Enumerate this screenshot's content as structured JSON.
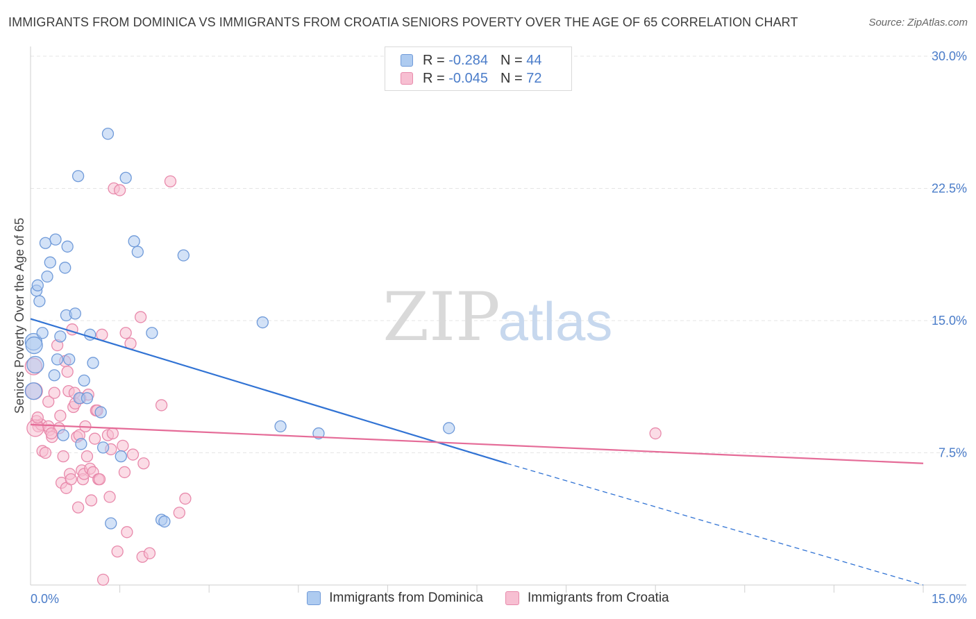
{
  "header": {
    "title": "IMMIGRANTS FROM DOMINICA VS IMMIGRANTS FROM CROATIA SENIORS POVERTY OVER THE AGE OF 65 CORRELATION CHART",
    "source": "Source: ZipAtlas.com"
  },
  "watermark": {
    "zip": "ZIP",
    "atlas": "atlas"
  },
  "legend_top": {
    "r_label": "R =",
    "n_label": "N =",
    "series": [
      {
        "r": "-0.284",
        "n": "44"
      },
      {
        "r": "-0.045",
        "n": "72"
      }
    ]
  },
  "colors": {
    "dominica_fill": "#aecbf0",
    "dominica_stroke": "#6f9ad9",
    "dominica_line": "#3173d4",
    "croatia_fill": "#f7bfd2",
    "croatia_stroke": "#e889ab",
    "croatia_line": "#e56c98",
    "grid": "#e4e4e4",
    "axis_tick_label": "#4a7cc9"
  },
  "chart_data": {
    "type": "scatter",
    "title": "IMMIGRANTS FROM DOMINICA VS IMMIGRANTS FROM CROATIA SENIORS POVERTY OVER THE AGE OF 65 CORRELATION CHART",
    "xlabel": "",
    "ylabel": "Seniors Poverty Over the Age of 65",
    "xlim": [
      0,
      15
    ],
    "ylim": [
      0,
      30
    ],
    "x_ticks": [
      0,
      15
    ],
    "x_tick_labels": [
      "0.0%",
      "15.0%"
    ],
    "y_ticks": [
      7.5,
      15,
      22.5,
      30
    ],
    "y_tick_labels": [
      "7.5%",
      "15.0%",
      "22.5%",
      "30.0%"
    ],
    "grid": true,
    "legend_position": "top-center",
    "series": [
      {
        "name": "Immigrants from Dominica",
        "r": -0.284,
        "n": 44,
        "trend": {
          "x": [
            0,
            8.0
          ],
          "y": [
            15.1,
            6.9
          ]
        },
        "trend_extension": {
          "x": [
            8.0,
            15.0
          ],
          "y": [
            6.9,
            0.0
          ]
        },
        "points": [
          [
            0.05,
            13.8
          ],
          [
            0.06,
            13.6
          ],
          [
            0.1,
            16.7
          ],
          [
            0.12,
            17.0
          ],
          [
            0.15,
            16.1
          ],
          [
            0.2,
            14.3
          ],
          [
            0.25,
            19.4
          ],
          [
            0.28,
            17.5
          ],
          [
            0.33,
            18.3
          ],
          [
            0.4,
            11.9
          ],
          [
            0.42,
            19.6
          ],
          [
            0.45,
            12.8
          ],
          [
            0.5,
            14.1
          ],
          [
            0.55,
            8.5
          ],
          [
            0.58,
            18.0
          ],
          [
            0.6,
            15.3
          ],
          [
            0.62,
            19.2
          ],
          [
            0.65,
            12.8
          ],
          [
            0.75,
            15.4
          ],
          [
            0.8,
            23.2
          ],
          [
            0.82,
            10.6
          ],
          [
            0.85,
            8.0
          ],
          [
            0.9,
            11.6
          ],
          [
            0.95,
            10.6
          ],
          [
            1.0,
            14.2
          ],
          [
            1.05,
            12.6
          ],
          [
            1.18,
            9.8
          ],
          [
            1.22,
            7.8
          ],
          [
            1.35,
            3.5
          ],
          [
            1.3,
            25.6
          ],
          [
            1.52,
            7.3
          ],
          [
            1.6,
            23.1
          ],
          [
            1.74,
            19.5
          ],
          [
            1.8,
            18.9
          ],
          [
            2.04,
            14.3
          ],
          [
            2.2,
            3.7
          ],
          [
            2.25,
            3.6
          ],
          [
            2.57,
            18.7
          ],
          [
            3.9,
            14.9
          ],
          [
            4.2,
            9.0
          ],
          [
            4.84,
            8.6
          ],
          [
            7.03,
            8.9
          ],
          [
            0.05,
            11.0
          ],
          [
            0.08,
            12.5
          ]
        ]
      },
      {
        "name": "Immigrants from Croatia",
        "r": -0.045,
        "n": 72,
        "trend": {
          "x": [
            0,
            15.0
          ],
          "y": [
            9.1,
            6.9
          ]
        },
        "points": [
          [
            0.05,
            12.4
          ],
          [
            0.06,
            11.0
          ],
          [
            0.1,
            9.3
          ],
          [
            0.13,
            9.0
          ],
          [
            0.18,
            9.1
          ],
          [
            0.2,
            7.6
          ],
          [
            0.25,
            7.5
          ],
          [
            0.3,
            10.4
          ],
          [
            0.32,
            8.8
          ],
          [
            0.36,
            8.4
          ],
          [
            0.4,
            10.9
          ],
          [
            0.45,
            13.6
          ],
          [
            0.48,
            8.9
          ],
          [
            0.5,
            9.6
          ],
          [
            0.52,
            5.8
          ],
          [
            0.55,
            7.3
          ],
          [
            0.58,
            12.7
          ],
          [
            0.6,
            5.5
          ],
          [
            0.62,
            12.1
          ],
          [
            0.64,
            11.0
          ],
          [
            0.66,
            6.3
          ],
          [
            0.68,
            6.0
          ],
          [
            0.7,
            14.5
          ],
          [
            0.72,
            10.1
          ],
          [
            0.74,
            10.9
          ],
          [
            0.75,
            10.3
          ],
          [
            0.78,
            8.4
          ],
          [
            0.8,
            4.4
          ],
          [
            0.82,
            8.5
          ],
          [
            0.84,
            10.6
          ],
          [
            0.86,
            6.5
          ],
          [
            0.88,
            6.0
          ],
          [
            0.9,
            6.3
          ],
          [
            0.92,
            9.0
          ],
          [
            0.95,
            7.3
          ],
          [
            0.97,
            10.8
          ],
          [
            1.0,
            6.6
          ],
          [
            1.02,
            4.8
          ],
          [
            1.05,
            6.4
          ],
          [
            1.08,
            8.3
          ],
          [
            1.1,
            9.9
          ],
          [
            1.12,
            9.9
          ],
          [
            1.14,
            6.0
          ],
          [
            1.16,
            6.0
          ],
          [
            1.2,
            14.2
          ],
          [
            1.22,
            0.3
          ],
          [
            1.3,
            8.5
          ],
          [
            1.33,
            5.0
          ],
          [
            1.35,
            7.7
          ],
          [
            1.38,
            8.6
          ],
          [
            1.4,
            22.5
          ],
          [
            1.46,
            1.9
          ],
          [
            1.5,
            22.4
          ],
          [
            1.55,
            7.9
          ],
          [
            1.58,
            6.4
          ],
          [
            1.6,
            14.3
          ],
          [
            1.62,
            3.0
          ],
          [
            1.68,
            13.7
          ],
          [
            1.72,
            7.4
          ],
          [
            1.85,
            15.2
          ],
          [
            1.9,
            6.9
          ],
          [
            1.88,
            1.6
          ],
          [
            2.0,
            1.8
          ],
          [
            2.2,
            10.2
          ],
          [
            2.35,
            22.9
          ],
          [
            2.5,
            4.1
          ],
          [
            2.6,
            4.9
          ],
          [
            10.5,
            8.6
          ],
          [
            0.08,
            8.9
          ],
          [
            0.12,
            9.5
          ],
          [
            0.3,
            9.0
          ],
          [
            0.35,
            8.6
          ]
        ]
      }
    ]
  },
  "legend_bottom": [
    "Immigrants from Dominica",
    "Immigrants from Croatia"
  ]
}
